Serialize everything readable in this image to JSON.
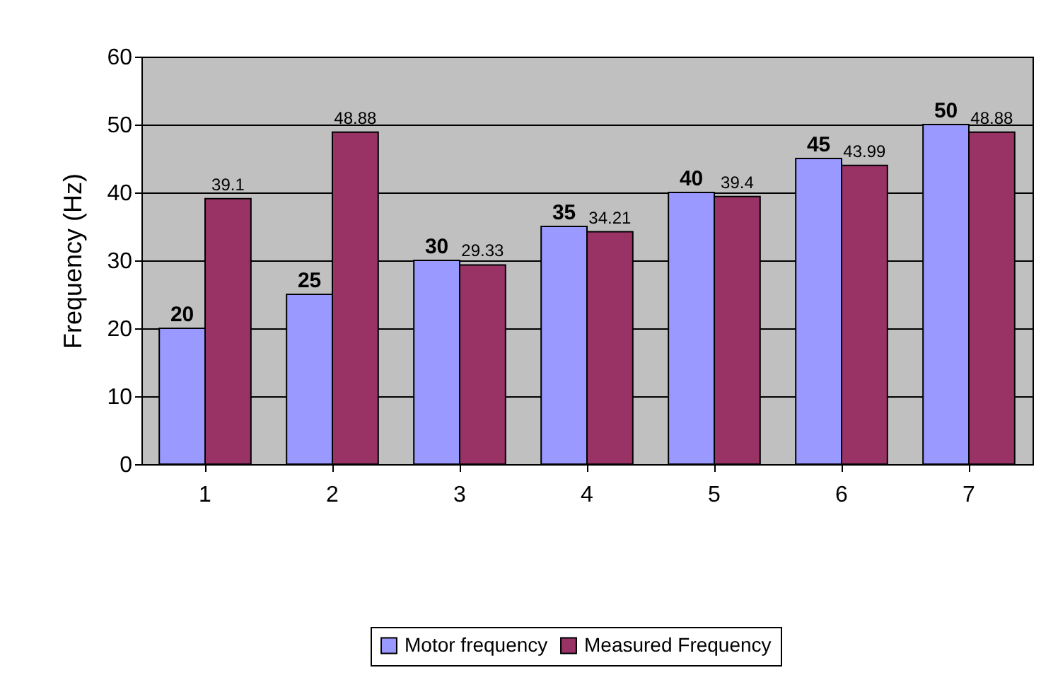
{
  "chart_data": {
    "type": "bar",
    "ylabel": "Frequency (Hz)",
    "categories": [
      "1",
      "2",
      "3",
      "4",
      "5",
      "6",
      "7"
    ],
    "series": [
      {
        "name": "Motor frequency",
        "color": "#9999ff",
        "values": [
          20,
          25,
          30,
          35,
          40,
          45,
          50
        ]
      },
      {
        "name": "Measured Frequency",
        "color": "#993366",
        "values": [
          39.1,
          48.88,
          29.33,
          34.21,
          39.4,
          43.99,
          48.88
        ]
      }
    ],
    "ylim": [
      0,
      60
    ],
    "yticks": [
      0,
      10,
      20,
      30,
      40,
      50,
      60
    ],
    "grid": "y",
    "legend": "bottom",
    "data_labels": true
  }
}
